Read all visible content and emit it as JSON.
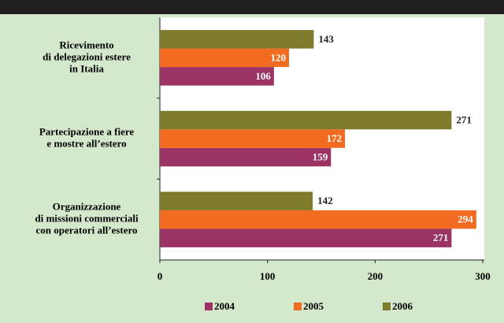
{
  "chart_data": {
    "type": "hbar",
    "categories": [
      [
        "Ricevimento",
        "di delegazioni estere",
        "in Italia"
      ],
      [
        "Partecipazione a fiere",
        "e mostre all’estero"
      ],
      [
        "Organizzazione",
        "di missioni commerciali",
        "con operatori all’estero"
      ]
    ],
    "series": [
      {
        "name": "2004",
        "color": "#9b3364",
        "values": [
          106,
          159,
          271
        ],
        "label_inside": true
      },
      {
        "name": "2005",
        "color": "#f26b21",
        "values": [
          120,
          172,
          294
        ],
        "label_inside": true
      },
      {
        "name": "2006",
        "color": "#7e7b2d",
        "values": [
          143,
          271,
          142
        ],
        "label_inside": false
      }
    ],
    "xlim": [
      0,
      300
    ],
    "xticks": [
      0,
      100,
      200,
      300
    ],
    "legend": "bottom"
  }
}
